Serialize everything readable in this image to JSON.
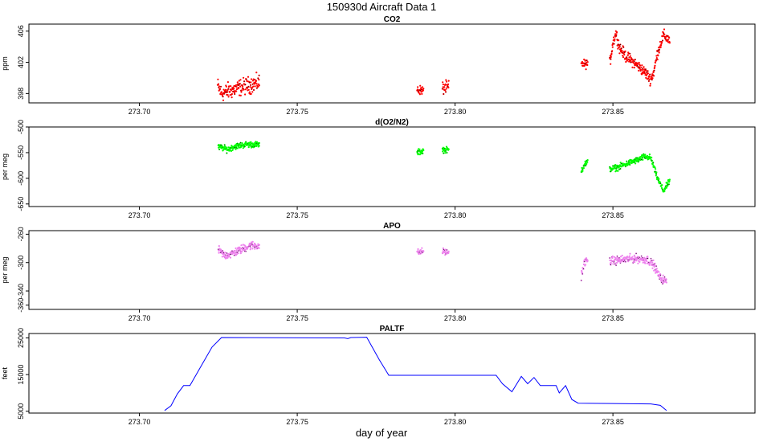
{
  "title": "150930d    Aircraft Data 1",
  "chart_data": [
    {
      "type": "scatter",
      "title": "CO2",
      "ylabel": "ppm",
      "xlabel": "",
      "color": "#ff0000",
      "xlim": [
        273.665,
        273.895
      ],
      "ylim": [
        396.8,
        406.9
      ],
      "xticks": [
        273.7,
        273.75,
        273.8,
        273.85
      ],
      "xtick_labels": [
        "273.70",
        "273.75",
        "273.80",
        "273.85"
      ],
      "yticks": [
        398,
        402,
        406
      ],
      "ytick_labels": [
        "398",
        "402",
        "406"
      ],
      "segments": [
        {
          "x": [
            273.7248,
            273.726,
            273.728,
            273.73,
            273.732,
            273.734,
            273.736,
            273.738
          ],
          "y": [
            399.0,
            398.0,
            398.3,
            398.5,
            398.8,
            399.0,
            399.2,
            399.4
          ],
          "spread": 0.9
        },
        {
          "x": [
            273.788,
            273.79
          ],
          "y": [
            398.5,
            398.4
          ],
          "spread": 0.5
        },
        {
          "x": [
            273.796,
            273.798
          ],
          "y": [
            398.7,
            398.8
          ],
          "spread": 0.7
        },
        {
          "x": [
            273.84,
            273.842
          ],
          "y": [
            401.8,
            401.8
          ],
          "spread": 0.5
        },
        {
          "x": [
            273.849,
            273.85,
            273.851,
            273.852,
            273.854,
            273.856,
            273.858,
            273.86,
            273.862,
            273.863,
            273.864,
            273.866,
            273.868
          ],
          "y": [
            401.8,
            404.5,
            405.8,
            404.0,
            402.8,
            402.2,
            401.5,
            400.8,
            399.8,
            400.8,
            403.0,
            405.5,
            404.8
          ],
          "spread": 0.6
        }
      ]
    },
    {
      "type": "scatter",
      "title": "d(O2/N2)",
      "ylabel": "per meg",
      "xlabel": "",
      "color": "#00ff00",
      "xlim": [
        273.665,
        273.895
      ],
      "ylim": [
        -655,
        -500
      ],
      "xticks": [
        273.7,
        273.75,
        273.8,
        273.85
      ],
      "xtick_labels": [
        "273.70",
        "273.75",
        "273.80",
        "273.85"
      ],
      "yticks": [
        -500,
        -550,
        -600,
        -650
      ],
      "ytick_labels": [
        "-500",
        "-550",
        "-600",
        "-650"
      ],
      "segments": [
        {
          "x": [
            273.725,
            273.726,
            273.728,
            273.73,
            273.732,
            273.734,
            273.736,
            273.738
          ],
          "y": [
            -540,
            -540,
            -544,
            -538,
            -536,
            -534,
            -534,
            -535
          ],
          "spread": 5
        },
        {
          "x": [
            273.788,
            273.79
          ],
          "y": [
            -550,
            -546
          ],
          "spread": 5
        },
        {
          "x": [
            273.796,
            273.798
          ],
          "y": [
            -544,
            -545
          ],
          "spread": 5
        },
        {
          "x": [
            273.84,
            273.841,
            273.842
          ],
          "y": [
            -585,
            -572,
            -570
          ],
          "spread": 6
        },
        {
          "x": [
            273.849,
            273.852,
            273.855,
            273.858,
            273.86,
            273.862,
            273.864,
            273.866,
            273.868
          ],
          "y": [
            -582,
            -578,
            -570,
            -564,
            -558,
            -560,
            -598,
            -625,
            -605
          ],
          "spread": 5
        }
      ]
    },
    {
      "type": "scatter",
      "title": "APO",
      "ylabel": "per meg",
      "xlabel": "",
      "color": "#ee82ee",
      "xlim": [
        273.665,
        273.895
      ],
      "ylim": [
        -366,
        -255
      ],
      "xticks": [
        273.7,
        273.75,
        273.8,
        273.85
      ],
      "xtick_labels": [
        "273.70",
        "273.75",
        "273.80",
        "273.85"
      ],
      "yticks": [
        -260,
        -300,
        -340,
        -360
      ],
      "ytick_labels": [
        "-260",
        "-300",
        "-340",
        "-360"
      ],
      "segments": [
        {
          "x": [
            273.725,
            273.727,
            273.729,
            273.731,
            273.733,
            273.735,
            273.738
          ],
          "y": [
            -282,
            -290,
            -288,
            -284,
            -280,
            -276,
            -276
          ],
          "spread": 5
        },
        {
          "x": [
            273.788,
            273.79
          ],
          "y": [
            -286,
            -284
          ],
          "spread": 4
        },
        {
          "x": [
            273.796,
            273.798
          ],
          "y": [
            -284,
            -286
          ],
          "spread": 4
        },
        {
          "x": [
            273.84,
            273.841,
            273.842
          ],
          "y": [
            -318,
            -300,
            -296
          ],
          "spread": 5
        },
        {
          "x": [
            273.849,
            273.853,
            273.857,
            273.861,
            273.863,
            273.865,
            273.867
          ],
          "y": [
            -298,
            -296,
            -294,
            -296,
            -304,
            -322,
            -326
          ],
          "spread": 5
        }
      ]
    },
    {
      "type": "line",
      "title": "PALTF",
      "ylabel": "feet",
      "xlabel": "day of year",
      "color": "#0000ff",
      "xlim": [
        273.665,
        273.895
      ],
      "ylim": [
        4500,
        26200
      ],
      "xticks": [
        273.7,
        273.75,
        273.8,
        273.85
      ],
      "xtick_labels": [
        "273.70",
        "273.75",
        "273.80",
        "273.85"
      ],
      "yticks": [
        5000,
        15000,
        25000
      ],
      "ytick_labels": [
        "5000",
        "15000",
        "25000"
      ],
      "x": [
        273.708,
        273.71,
        273.712,
        273.714,
        273.716,
        273.72,
        273.723,
        273.726,
        273.765,
        273.766,
        273.767,
        273.772,
        273.776,
        273.779,
        273.795,
        273.813,
        273.815,
        273.818,
        273.821,
        273.823,
        273.825,
        273.827,
        273.832,
        273.833,
        273.835,
        273.837,
        273.839,
        273.862,
        273.865,
        273.867
      ],
      "y": [
        5200,
        6500,
        9700,
        12000,
        12000,
        18000,
        22500,
        25100,
        25000,
        24800,
        25100,
        25200,
        19000,
        14800,
        14800,
        14800,
        12500,
        10300,
        14500,
        12500,
        14200,
        12000,
        12000,
        10000,
        12000,
        8200,
        7200,
        7000,
        6600,
        5200
      ]
    }
  ]
}
